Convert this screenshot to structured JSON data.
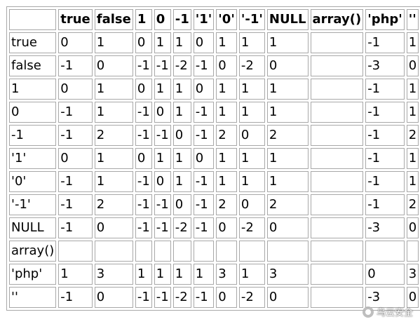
{
  "table": {
    "corner": "",
    "columns": [
      "true",
      "false",
      "1",
      "0",
      "-1",
      "'1'",
      "'0'",
      "'-1'",
      "NULL",
      "array()",
      "'php'",
      "''"
    ],
    "rows": [
      {
        "label": "true",
        "cells": [
          "0",
          "1",
          "0",
          "1",
          "1",
          "0",
          "1",
          "1",
          "1",
          "",
          "-1",
          "1"
        ]
      },
      {
        "label": "false",
        "cells": [
          "-1",
          "0",
          "-1",
          "-1",
          "-2",
          "-1",
          "0",
          "-2",
          "0",
          "",
          "-3",
          "0"
        ]
      },
      {
        "label": "1",
        "cells": [
          "0",
          "1",
          "0",
          "1",
          "1",
          "0",
          "1",
          "1",
          "1",
          "",
          "-1",
          "1"
        ]
      },
      {
        "label": "0",
        "cells": [
          "-1",
          "1",
          "-1",
          "0",
          "1",
          "-1",
          "1",
          "1",
          "1",
          "",
          "-1",
          "1"
        ]
      },
      {
        "label": "-1",
        "cells": [
          "-1",
          "2",
          "-1",
          "-1",
          "0",
          "-1",
          "2",
          "0",
          "2",
          "",
          "-1",
          "2"
        ]
      },
      {
        "label": "'1'",
        "cells": [
          "0",
          "1",
          "0",
          "1",
          "1",
          "0",
          "1",
          "1",
          "1",
          "",
          "-1",
          "1"
        ]
      },
      {
        "label": "'0'",
        "cells": [
          "-1",
          "1",
          "-1",
          "0",
          "1",
          "-1",
          "1",
          "1",
          "1",
          "",
          "-1",
          "1"
        ]
      },
      {
        "label": "'-1'",
        "cells": [
          "-1",
          "2",
          "-1",
          "-1",
          "0",
          "-1",
          "2",
          "0",
          "2",
          "",
          "-1",
          "2"
        ]
      },
      {
        "label": "NULL",
        "cells": [
          "-1",
          "0",
          "-1",
          "-1",
          "-2",
          "-1",
          "0",
          "-2",
          "0",
          "",
          "-3",
          "0"
        ]
      },
      {
        "label": "array()",
        "cells": [
          "",
          "",
          "",
          "",
          "",
          "",
          "",
          "",
          "",
          "",
          "",
          ""
        ]
      },
      {
        "label": "'php'",
        "cells": [
          "1",
          "3",
          "1",
          "1",
          "1",
          "1",
          "3",
          "1",
          "3",
          "",
          "0",
          "3"
        ]
      },
      {
        "label": "''",
        "cells": [
          "-1",
          "0",
          "-1",
          "-1",
          "-2",
          "-1",
          "0",
          "-2",
          "0",
          "",
          "-3",
          "0"
        ]
      }
    ]
  },
  "watermark": {
    "text": "乌云安全",
    "icon": "wechat-logo-icon"
  }
}
